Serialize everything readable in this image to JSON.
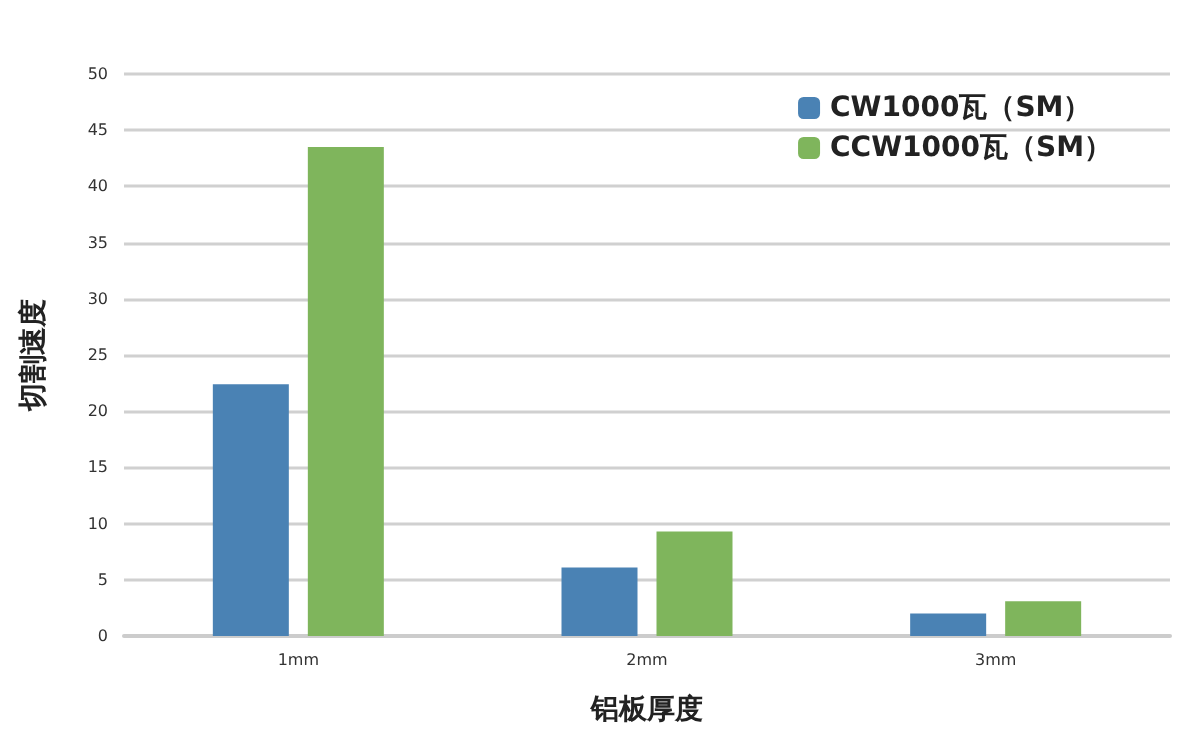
{
  "chart_data": {
    "type": "bar",
    "xlabel": "铝板厚度",
    "ylabel": "切割速度",
    "categories": [
      "1mm",
      "2mm",
      "3mm"
    ],
    "series": [
      {
        "name": "CW1000瓦（SM）",
        "color": "#4a82b4",
        "values": [
          22.4,
          6.1,
          2.0
        ]
      },
      {
        "name": "CCW1000瓦（SM）",
        "color": "#7fb55c",
        "values": [
          43.5,
          9.3,
          3.1
        ]
      }
    ],
    "ylim": [
      0,
      50
    ],
    "yticks": [
      0,
      5,
      10,
      15,
      20,
      25,
      30,
      35,
      40,
      45,
      50
    ],
    "grid": "y",
    "legend": "top right"
  }
}
